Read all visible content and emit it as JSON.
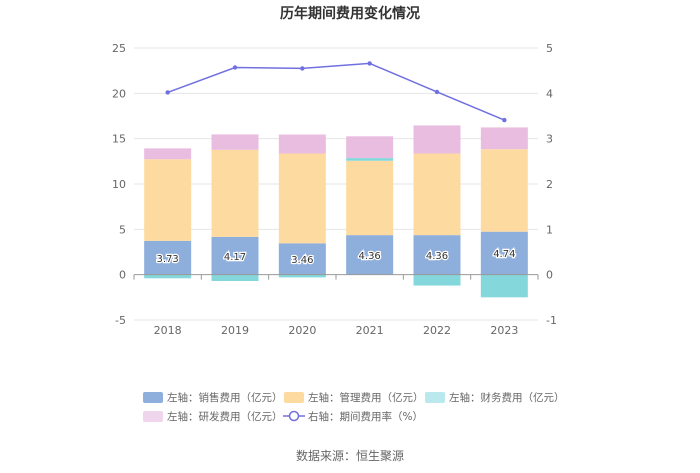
{
  "chart_data": {
    "type": "bar",
    "title": "历年期间费用变化情况",
    "categories": [
      "2018",
      "2019",
      "2020",
      "2021",
      "2022",
      "2023"
    ],
    "left_axis": {
      "ylim": [
        -5,
        25
      ],
      "ticks": [
        "-5",
        "0",
        "5",
        "10",
        "15",
        "20",
        "25"
      ]
    },
    "right_axis": {
      "ylim": [
        -1,
        5
      ],
      "ticks": [
        "-1",
        "0",
        "1",
        "2",
        "3",
        "4",
        "5"
      ]
    },
    "series": [
      {
        "name": "左轴：销售费用（亿元）",
        "axis": "left",
        "color": "#8eaedc",
        "values": [
          3.73,
          4.17,
          3.46,
          4.36,
          4.36,
          4.74
        ]
      },
      {
        "name": "左轴：管理费用（亿元）",
        "axis": "left",
        "color": "#fddba0",
        "values": [
          9.0,
          9.6,
          9.9,
          8.2,
          9.0,
          9.1
        ]
      },
      {
        "name": "左轴：财务费用（亿元）",
        "axis": "left",
        "color": "#84d8dc",
        "values": [
          -0.4,
          -0.7,
          -0.3,
          0.3,
          -1.2,
          -2.5
        ]
      },
      {
        "name": "左轴：研发费用（亿元）",
        "axis": "left",
        "color": "#e8bddf",
        "values": [
          1.2,
          1.7,
          2.1,
          2.4,
          3.1,
          2.4
        ]
      },
      {
        "name": "右轴：期间费用率（%）",
        "axis": "right",
        "type": "line",
        "color": "#7070e0",
        "values": [
          4.02,
          4.57,
          4.55,
          4.66,
          4.03,
          3.41
        ]
      }
    ],
    "bar_labels": [
      "3.73",
      "4.17",
      "3.46",
      "4.36",
      "4.36",
      "4.74"
    ]
  },
  "legend": [
    {
      "label": "左轴：销售费用（亿元）",
      "color": "#8eaedc",
      "marker": "rect"
    },
    {
      "label": "左轴：管理费用（亿元）",
      "color": "#fddba0",
      "marker": "rect"
    },
    {
      "label": "左轴：财务费用（亿元）",
      "color": "#b9e9ec",
      "marker": "rect"
    },
    {
      "label": "左轴：研发费用（亿元）",
      "color": "#f0d6ec",
      "marker": "rect"
    },
    {
      "label": "右轴：期间费用率（%）",
      "color": "#7070e0",
      "marker": "line"
    }
  ],
  "source": "数据来源：恒生聚源"
}
